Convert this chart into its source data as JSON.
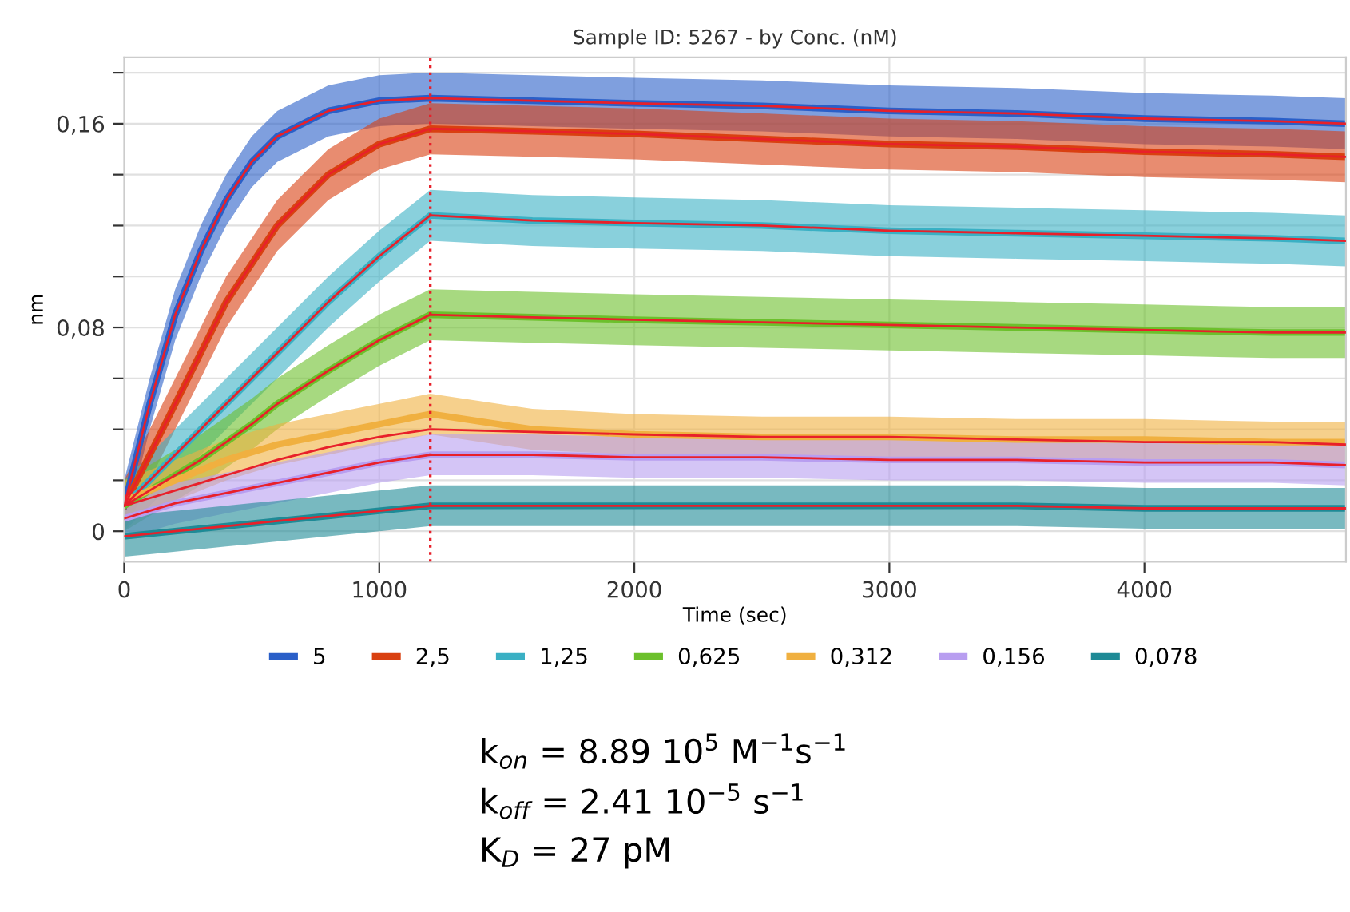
{
  "chart_data": {
    "type": "line",
    "title": "Sample ID: 5267 - by Conc. (nM)",
    "xlabel": "Time (sec)",
    "ylabel": "nm",
    "x": [
      0,
      100,
      200,
      300,
      400,
      500,
      600,
      800,
      1000,
      1200,
      1600,
      2000,
      2500,
      3000,
      3500,
      4000,
      4500,
      4790
    ],
    "xlim": [
      0,
      4790
    ],
    "xticks": [
      0,
      1000,
      2000,
      3000,
      4000
    ],
    "ylim": [
      -0.012,
      0.186
    ],
    "yticks": [
      {
        "value": 0,
        "label": "0"
      },
      {
        "value": 0.02,
        "label": null
      },
      {
        "value": 0.04,
        "label": null
      },
      {
        "value": 0.06,
        "label": null
      },
      {
        "value": 0.08,
        "label": "0,08"
      },
      {
        "value": 0.1,
        "label": null
      },
      {
        "value": 0.12,
        "label": null
      },
      {
        "value": 0.14,
        "label": null
      },
      {
        "value": 0.16,
        "label": "0,16"
      },
      {
        "value": 0.18,
        "label": null
      }
    ],
    "grid": true,
    "legend": "bottom",
    "line_style": "solid",
    "series": [
      {
        "name": "5",
        "color": "#2a5fc8",
        "values": [
          0.01,
          0.05,
          0.085,
          0.11,
          0.13,
          0.145,
          0.155,
          0.165,
          0.169,
          0.17,
          0.169,
          0.168,
          0.167,
          0.165,
          0.164,
          0.162,
          0.161,
          0.16
        ],
        "lower": [
          0,
          0.04,
          0.075,
          0.1,
          0.12,
          0.135,
          0.145,
          0.155,
          0.159,
          0.16,
          0.159,
          0.158,
          0.157,
          0.155,
          0.154,
          0.152,
          0.151,
          0.15
        ],
        "upper": [
          0.02,
          0.06,
          0.095,
          0.12,
          0.14,
          0.155,
          0.165,
          0.175,
          0.179,
          0.18,
          0.179,
          0.178,
          0.177,
          0.175,
          0.174,
          0.172,
          0.171,
          0.17
        ]
      },
      {
        "name": "2,5",
        "color": "#d94010",
        "values": [
          0.01,
          0.03,
          0.05,
          0.07,
          0.09,
          0.105,
          0.12,
          0.14,
          0.152,
          0.158,
          0.157,
          0.156,
          0.154,
          0.152,
          0.151,
          0.149,
          0.148,
          0.147
        ],
        "lower": [
          0,
          0.02,
          0.04,
          0.06,
          0.08,
          0.095,
          0.11,
          0.13,
          0.142,
          0.148,
          0.147,
          0.146,
          0.144,
          0.142,
          0.141,
          0.139,
          0.138,
          0.137
        ],
        "upper": [
          0.02,
          0.04,
          0.06,
          0.08,
          0.1,
          0.115,
          0.13,
          0.15,
          0.162,
          0.168,
          0.167,
          0.166,
          0.164,
          0.162,
          0.161,
          0.159,
          0.158,
          0.157
        ]
      },
      {
        "name": "1,25",
        "color": "#3ab0c4",
        "values": [
          0.01,
          0.02,
          0.03,
          0.04,
          0.05,
          0.06,
          0.07,
          0.09,
          0.108,
          0.124,
          0.122,
          0.121,
          0.12,
          0.118,
          0.117,
          0.116,
          0.115,
          0.114
        ],
        "lower": [
          0,
          0.01,
          0.02,
          0.03,
          0.04,
          0.05,
          0.06,
          0.08,
          0.098,
          0.114,
          0.112,
          0.111,
          0.11,
          0.108,
          0.107,
          0.106,
          0.105,
          0.104
        ],
        "upper": [
          0.02,
          0.03,
          0.04,
          0.05,
          0.06,
          0.07,
          0.08,
          0.1,
          0.118,
          0.134,
          0.132,
          0.131,
          0.13,
          0.128,
          0.127,
          0.126,
          0.125,
          0.124
        ]
      },
      {
        "name": "0,625",
        "color": "#6cc02c",
        "values": [
          0.01,
          0.016,
          0.022,
          0.028,
          0.035,
          0.042,
          0.05,
          0.063,
          0.075,
          0.085,
          0.084,
          0.083,
          0.082,
          0.081,
          0.08,
          0.079,
          0.078,
          0.078
        ],
        "lower": [
          0,
          0.006,
          0.012,
          0.018,
          0.025,
          0.032,
          0.04,
          0.053,
          0.065,
          0.075,
          0.074,
          0.073,
          0.072,
          0.071,
          0.07,
          0.069,
          0.068,
          0.068
        ],
        "upper": [
          0.02,
          0.026,
          0.032,
          0.038,
          0.045,
          0.052,
          0.06,
          0.073,
          0.085,
          0.095,
          0.094,
          0.093,
          0.092,
          0.091,
          0.09,
          0.089,
          0.088,
          0.088
        ]
      },
      {
        "name": "0,312",
        "color": "#f0b040",
        "values": [
          0.012,
          0.016,
          0.02,
          0.024,
          0.028,
          0.031,
          0.034,
          0.038,
          0.042,
          0.046,
          0.04,
          0.038,
          0.037,
          0.037,
          0.036,
          0.036,
          0.035,
          0.035
        ],
        "lower": [
          0.004,
          0.008,
          0.012,
          0.016,
          0.02,
          0.023,
          0.026,
          0.03,
          0.034,
          0.038,
          0.032,
          0.03,
          0.029,
          0.029,
          0.028,
          0.028,
          0.027,
          0.027
        ],
        "upper": [
          0.02,
          0.024,
          0.028,
          0.032,
          0.036,
          0.039,
          0.042,
          0.046,
          0.05,
          0.054,
          0.048,
          0.046,
          0.045,
          0.045,
          0.044,
          0.044,
          0.043,
          0.043
        ]
      },
      {
        "name": "0,156",
        "color": "#b89ef0",
        "values": [
          0.005,
          0.008,
          0.011,
          0.013,
          0.015,
          0.017,
          0.019,
          0.023,
          0.027,
          0.03,
          0.03,
          0.029,
          0.029,
          0.028,
          0.028,
          0.027,
          0.027,
          0.026
        ],
        "lower": [
          -0.003,
          0,
          0.003,
          0.005,
          0.007,
          0.009,
          0.011,
          0.015,
          0.019,
          0.022,
          0.022,
          0.021,
          0.021,
          0.02,
          0.02,
          0.019,
          0.019,
          0.018
        ],
        "upper": [
          0.013,
          0.016,
          0.019,
          0.021,
          0.023,
          0.025,
          0.027,
          0.031,
          0.035,
          0.038,
          0.038,
          0.037,
          0.037,
          0.036,
          0.036,
          0.035,
          0.035,
          0.034
        ]
      },
      {
        "name": "0,078",
        "color": "#1e8a96",
        "values": [
          -0.002,
          -0.001,
          0,
          0.001,
          0.002,
          0.003,
          0.004,
          0.006,
          0.008,
          0.01,
          0.01,
          0.01,
          0.01,
          0.01,
          0.01,
          0.009,
          0.009,
          0.009
        ],
        "lower": [
          -0.01,
          -0.009,
          -0.008,
          -0.007,
          -0.006,
          -0.005,
          -0.004,
          -0.002,
          0,
          0.002,
          0.002,
          0.002,
          0.002,
          0.002,
          0.002,
          0.001,
          0.001,
          0.001
        ],
        "upper": [
          0.006,
          0.007,
          0.008,
          0.009,
          0.01,
          0.011,
          0.012,
          0.014,
          0.016,
          0.018,
          0.018,
          0.018,
          0.018,
          0.018,
          0.018,
          0.017,
          0.017,
          0.017
        ]
      },
      {
        "color": "#e8202a",
        "values": [
          0.01,
          0.05,
          0.085,
          0.11,
          0.13,
          0.145,
          0.155,
          0.165,
          0.169,
          0.17,
          0.169,
          0.168,
          0.167,
          0.165,
          0.164,
          0.162,
          0.161,
          0.16
        ]
      },
      {
        "color": "#e8202a",
        "values": [
          0.01,
          0.03,
          0.05,
          0.07,
          0.09,
          0.105,
          0.12,
          0.14,
          0.152,
          0.158,
          0.157,
          0.156,
          0.154,
          0.152,
          0.151,
          0.149,
          0.148,
          0.147
        ]
      },
      {
        "color": "#e8202a",
        "values": [
          0.01,
          0.02,
          0.03,
          0.04,
          0.05,
          0.06,
          0.07,
          0.09,
          0.108,
          0.124,
          0.122,
          0.121,
          0.12,
          0.118,
          0.117,
          0.116,
          0.115,
          0.114
        ]
      },
      {
        "color": "#e8202a",
        "values": [
          0.01,
          0.016,
          0.022,
          0.028,
          0.035,
          0.042,
          0.05,
          0.063,
          0.075,
          0.085,
          0.084,
          0.083,
          0.082,
          0.081,
          0.08,
          0.079,
          0.078,
          0.078
        ]
      },
      {
        "color": "#e8202a",
        "values": [
          0.01,
          0.013,
          0.016,
          0.019,
          0.022,
          0.025,
          0.028,
          0.033,
          0.037,
          0.04,
          0.039,
          0.038,
          0.037,
          0.037,
          0.036,
          0.035,
          0.035,
          0.034
        ]
      },
      {
        "color": "#e8202a",
        "values": [
          0.005,
          0.008,
          0.011,
          0.013,
          0.015,
          0.017,
          0.019,
          0.023,
          0.027,
          0.03,
          0.03,
          0.029,
          0.029,
          0.028,
          0.028,
          0.027,
          0.027,
          0.026
        ]
      },
      {
        "color": "#e8202a",
        "values": [
          -0.002,
          -0.001,
          0,
          0.001,
          0.002,
          0.003,
          0.004,
          0.006,
          0.008,
          0.01,
          0.01,
          0.01,
          0.01,
          0.01,
          0.01,
          0.009,
          0.009,
          0.009
        ]
      }
    ],
    "ref_lines": [
      {
        "axis": "x",
        "value": 1200,
        "color": "#e8202a",
        "line_style": "dotted"
      }
    ],
    "annotations": [
      "k$_{on}$ = 8.89 10$^{5}$ M$^{−1}$s$^{−1}$",
      "k$_{off}$ = 2.41 10$^{−5}$ s$^{−1}$",
      "K$_{D}$ = 27 pM"
    ]
  }
}
